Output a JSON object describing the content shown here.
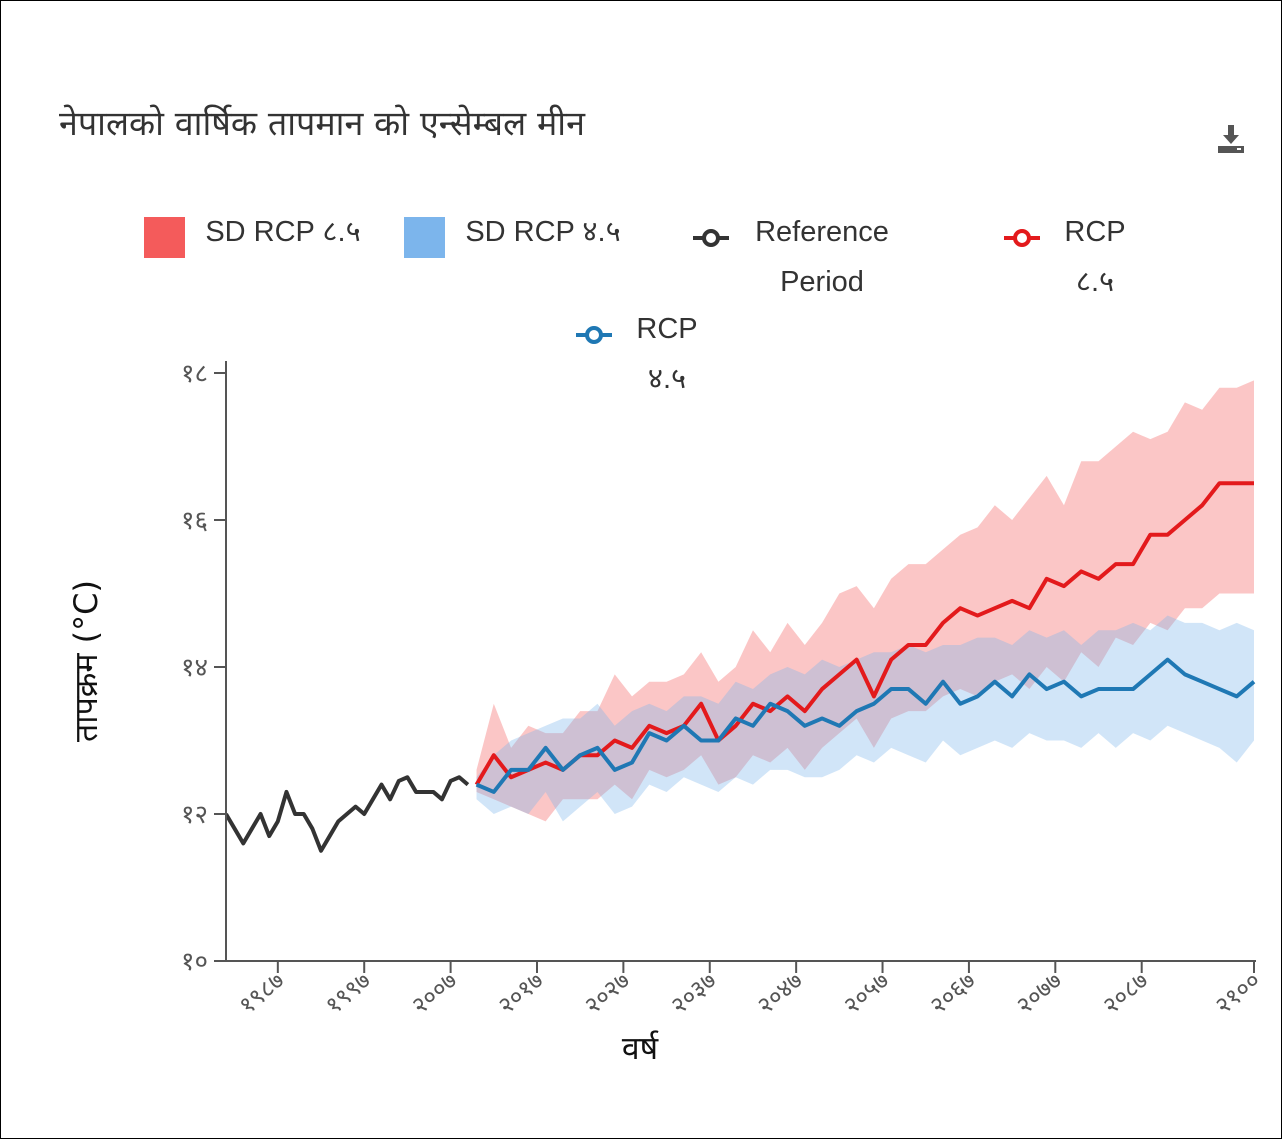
{
  "chart_data": {
    "type": "line",
    "title": "नेपालको वार्षिक तापमान को एन्सेम्बल मीन",
    "xlabel": "वर्ष",
    "ylabel": "तापक्रम (°C)",
    "xlim": [
      1981,
      2100
    ],
    "ylim": [
      10,
      18
    ],
    "xticks": [
      {
        "value": 1987,
        "label": "१९८७"
      },
      {
        "value": 1997,
        "label": "१९९७"
      },
      {
        "value": 2007,
        "label": "२००७"
      },
      {
        "value": 2017,
        "label": "२०१७"
      },
      {
        "value": 2027,
        "label": "२०२७"
      },
      {
        "value": 2037,
        "label": "२०३७"
      },
      {
        "value": 2047,
        "label": "२०४७"
      },
      {
        "value": 2057,
        "label": "२०५७"
      },
      {
        "value": 2067,
        "label": "२०६७"
      },
      {
        "value": 2077,
        "label": "२०७७"
      },
      {
        "value": 2087,
        "label": "२०८७"
      },
      {
        "value": 2100,
        "label": "२१००"
      }
    ],
    "yticks": [
      {
        "value": 10,
        "label": "१०"
      },
      {
        "value": 12,
        "label": "१२"
      },
      {
        "value": 14,
        "label": "१४"
      },
      {
        "value": 16,
        "label": "१६"
      },
      {
        "value": 18,
        "label": "१८"
      }
    ],
    "bands": [
      {
        "name": "SD RCP ८.५",
        "color": "#f45b5b",
        "x": [
          2010,
          2012,
          2014,
          2016,
          2018,
          2020,
          2022,
          2024,
          2026,
          2028,
          2030,
          2032,
          2034,
          2036,
          2038,
          2040,
          2042,
          2044,
          2046,
          2048,
          2050,
          2052,
          2054,
          2056,
          2058,
          2060,
          2062,
          2064,
          2066,
          2068,
          2070,
          2072,
          2074,
          2076,
          2078,
          2080,
          2082,
          2084,
          2086,
          2088,
          2090,
          2092,
          2094,
          2096,
          2098,
          2100
        ],
        "upper": [
          12.6,
          13.5,
          12.9,
          13.2,
          13.1,
          13.1,
          13.4,
          13.4,
          13.9,
          13.6,
          13.8,
          13.8,
          13.9,
          14.2,
          13.8,
          14.0,
          14.5,
          14.2,
          14.6,
          14.3,
          14.6,
          15.0,
          15.1,
          14.8,
          15.2,
          15.4,
          15.4,
          15.6,
          15.8,
          15.9,
          16.2,
          16.0,
          16.3,
          16.6,
          16.2,
          16.8,
          16.8,
          17.0,
          17.2,
          17.1,
          17.2,
          17.6,
          17.5,
          17.8,
          17.8,
          17.9
        ],
        "lower": [
          12.3,
          12.2,
          12.1,
          12.0,
          11.9,
          12.2,
          12.2,
          12.2,
          12.4,
          12.2,
          12.6,
          12.5,
          12.6,
          12.8,
          12.4,
          12.5,
          12.8,
          12.7,
          12.9,
          12.6,
          12.9,
          13.1,
          13.3,
          12.9,
          13.3,
          13.4,
          13.4,
          13.6,
          13.7,
          13.6,
          13.8,
          13.9,
          13.7,
          14.0,
          13.8,
          14.2,
          14.0,
          14.4,
          14.3,
          14.6,
          14.5,
          14.8,
          14.8,
          15.0,
          15.0,
          15.0
        ]
      },
      {
        "name": "SD RCP ४.५",
        "color": "#7cb5ec",
        "x": [
          2010,
          2012,
          2014,
          2016,
          2018,
          2020,
          2022,
          2024,
          2026,
          2028,
          2030,
          2032,
          2034,
          2036,
          2038,
          2040,
          2042,
          2044,
          2046,
          2048,
          2050,
          2052,
          2054,
          2056,
          2058,
          2060,
          2062,
          2064,
          2066,
          2068,
          2070,
          2072,
          2074,
          2076,
          2078,
          2080,
          2082,
          2084,
          2086,
          2088,
          2090,
          2092,
          2094,
          2096,
          2098,
          2100
        ],
        "upper": [
          12.5,
          12.8,
          13.0,
          13.1,
          13.2,
          13.3,
          13.3,
          13.5,
          13.2,
          13.4,
          13.5,
          13.4,
          13.6,
          13.6,
          13.5,
          13.8,
          13.7,
          13.9,
          14.0,
          13.9,
          14.1,
          14.0,
          14.1,
          14.2,
          14.2,
          14.3,
          14.2,
          14.3,
          14.3,
          14.4,
          14.4,
          14.3,
          14.5,
          14.4,
          14.5,
          14.3,
          14.5,
          14.5,
          14.6,
          14.5,
          14.7,
          14.6,
          14.6,
          14.5,
          14.6,
          14.5
        ],
        "lower": [
          12.2,
          12.0,
          12.1,
          12.0,
          12.3,
          11.9,
          12.1,
          12.3,
          12.0,
          12.1,
          12.4,
          12.3,
          12.5,
          12.4,
          12.3,
          12.5,
          12.4,
          12.6,
          12.6,
          12.5,
          12.5,
          12.6,
          12.8,
          12.7,
          12.9,
          12.8,
          12.7,
          13.0,
          12.8,
          12.9,
          13.0,
          12.9,
          13.1,
          13.0,
          13.0,
          12.9,
          13.1,
          12.9,
          13.1,
          13.0,
          13.2,
          13.1,
          13.0,
          12.9,
          12.7,
          13.0
        ]
      }
    ],
    "series": [
      {
        "name": "Reference Period",
        "color": "#333333",
        "x": [
          1981,
          1982,
          1983,
          1984,
          1985,
          1986,
          1987,
          1988,
          1989,
          1990,
          1991,
          1992,
          1993,
          1994,
          1995,
          1996,
          1997,
          1998,
          1999,
          2000,
          2001,
          2002,
          2003,
          2004,
          2005,
          2006,
          2007,
          2008,
          2009
        ],
        "values": [
          12.0,
          11.8,
          11.6,
          11.8,
          12.0,
          11.7,
          11.9,
          12.3,
          12.0,
          12.0,
          11.8,
          11.5,
          11.7,
          11.9,
          12.0,
          12.1,
          12.0,
          12.2,
          12.4,
          12.2,
          12.45,
          12.5,
          12.3,
          12.3,
          12.3,
          12.2,
          12.45,
          12.5,
          12.4
        ]
      },
      {
        "name": "RCP ८.५",
        "color": "#e31a1c",
        "x": [
          2010,
          2012,
          2014,
          2016,
          2018,
          2020,
          2022,
          2024,
          2026,
          2028,
          2030,
          2032,
          2034,
          2036,
          2038,
          2040,
          2042,
          2044,
          2046,
          2048,
          2050,
          2052,
          2054,
          2056,
          2058,
          2060,
          2062,
          2064,
          2066,
          2068,
          2070,
          2072,
          2074,
          2076,
          2078,
          2080,
          2082,
          2084,
          2086,
          2088,
          2090,
          2092,
          2094,
          2096,
          2098,
          2100
        ],
        "values": [
          12.4,
          12.8,
          12.5,
          12.6,
          12.7,
          12.6,
          12.8,
          12.8,
          13.0,
          12.9,
          13.2,
          13.1,
          13.2,
          13.5,
          13.0,
          13.2,
          13.5,
          13.4,
          13.6,
          13.4,
          13.7,
          13.9,
          14.1,
          13.6,
          14.1,
          14.3,
          14.3,
          14.6,
          14.8,
          14.7,
          14.8,
          14.9,
          14.8,
          15.2,
          15.1,
          15.3,
          15.2,
          15.4,
          15.4,
          15.8,
          15.8,
          16.0,
          16.2,
          16.5,
          16.5,
          16.5
        ]
      },
      {
        "name": "RCP ४.५",
        "color": "#1f78b4",
        "x": [
          2010,
          2012,
          2014,
          2016,
          2018,
          2020,
          2022,
          2024,
          2026,
          2028,
          2030,
          2032,
          2034,
          2036,
          2038,
          2040,
          2042,
          2044,
          2046,
          2048,
          2050,
          2052,
          2054,
          2056,
          2058,
          2060,
          2062,
          2064,
          2066,
          2068,
          2070,
          2072,
          2074,
          2076,
          2078,
          2080,
          2082,
          2084,
          2086,
          2088,
          2090,
          2092,
          2094,
          2096,
          2098,
          2100
        ],
        "values": [
          12.4,
          12.3,
          12.6,
          12.6,
          12.9,
          12.6,
          12.8,
          12.9,
          12.6,
          12.7,
          13.1,
          13.0,
          13.2,
          13.0,
          13.0,
          13.3,
          13.2,
          13.5,
          13.4,
          13.2,
          13.3,
          13.2,
          13.4,
          13.5,
          13.7,
          13.7,
          13.5,
          13.8,
          13.5,
          13.6,
          13.8,
          13.6,
          13.9,
          13.7,
          13.8,
          13.6,
          13.7,
          13.7,
          13.7,
          13.9,
          14.1,
          13.9,
          13.8,
          13.7,
          13.6,
          13.8
        ]
      }
    ]
  }
}
